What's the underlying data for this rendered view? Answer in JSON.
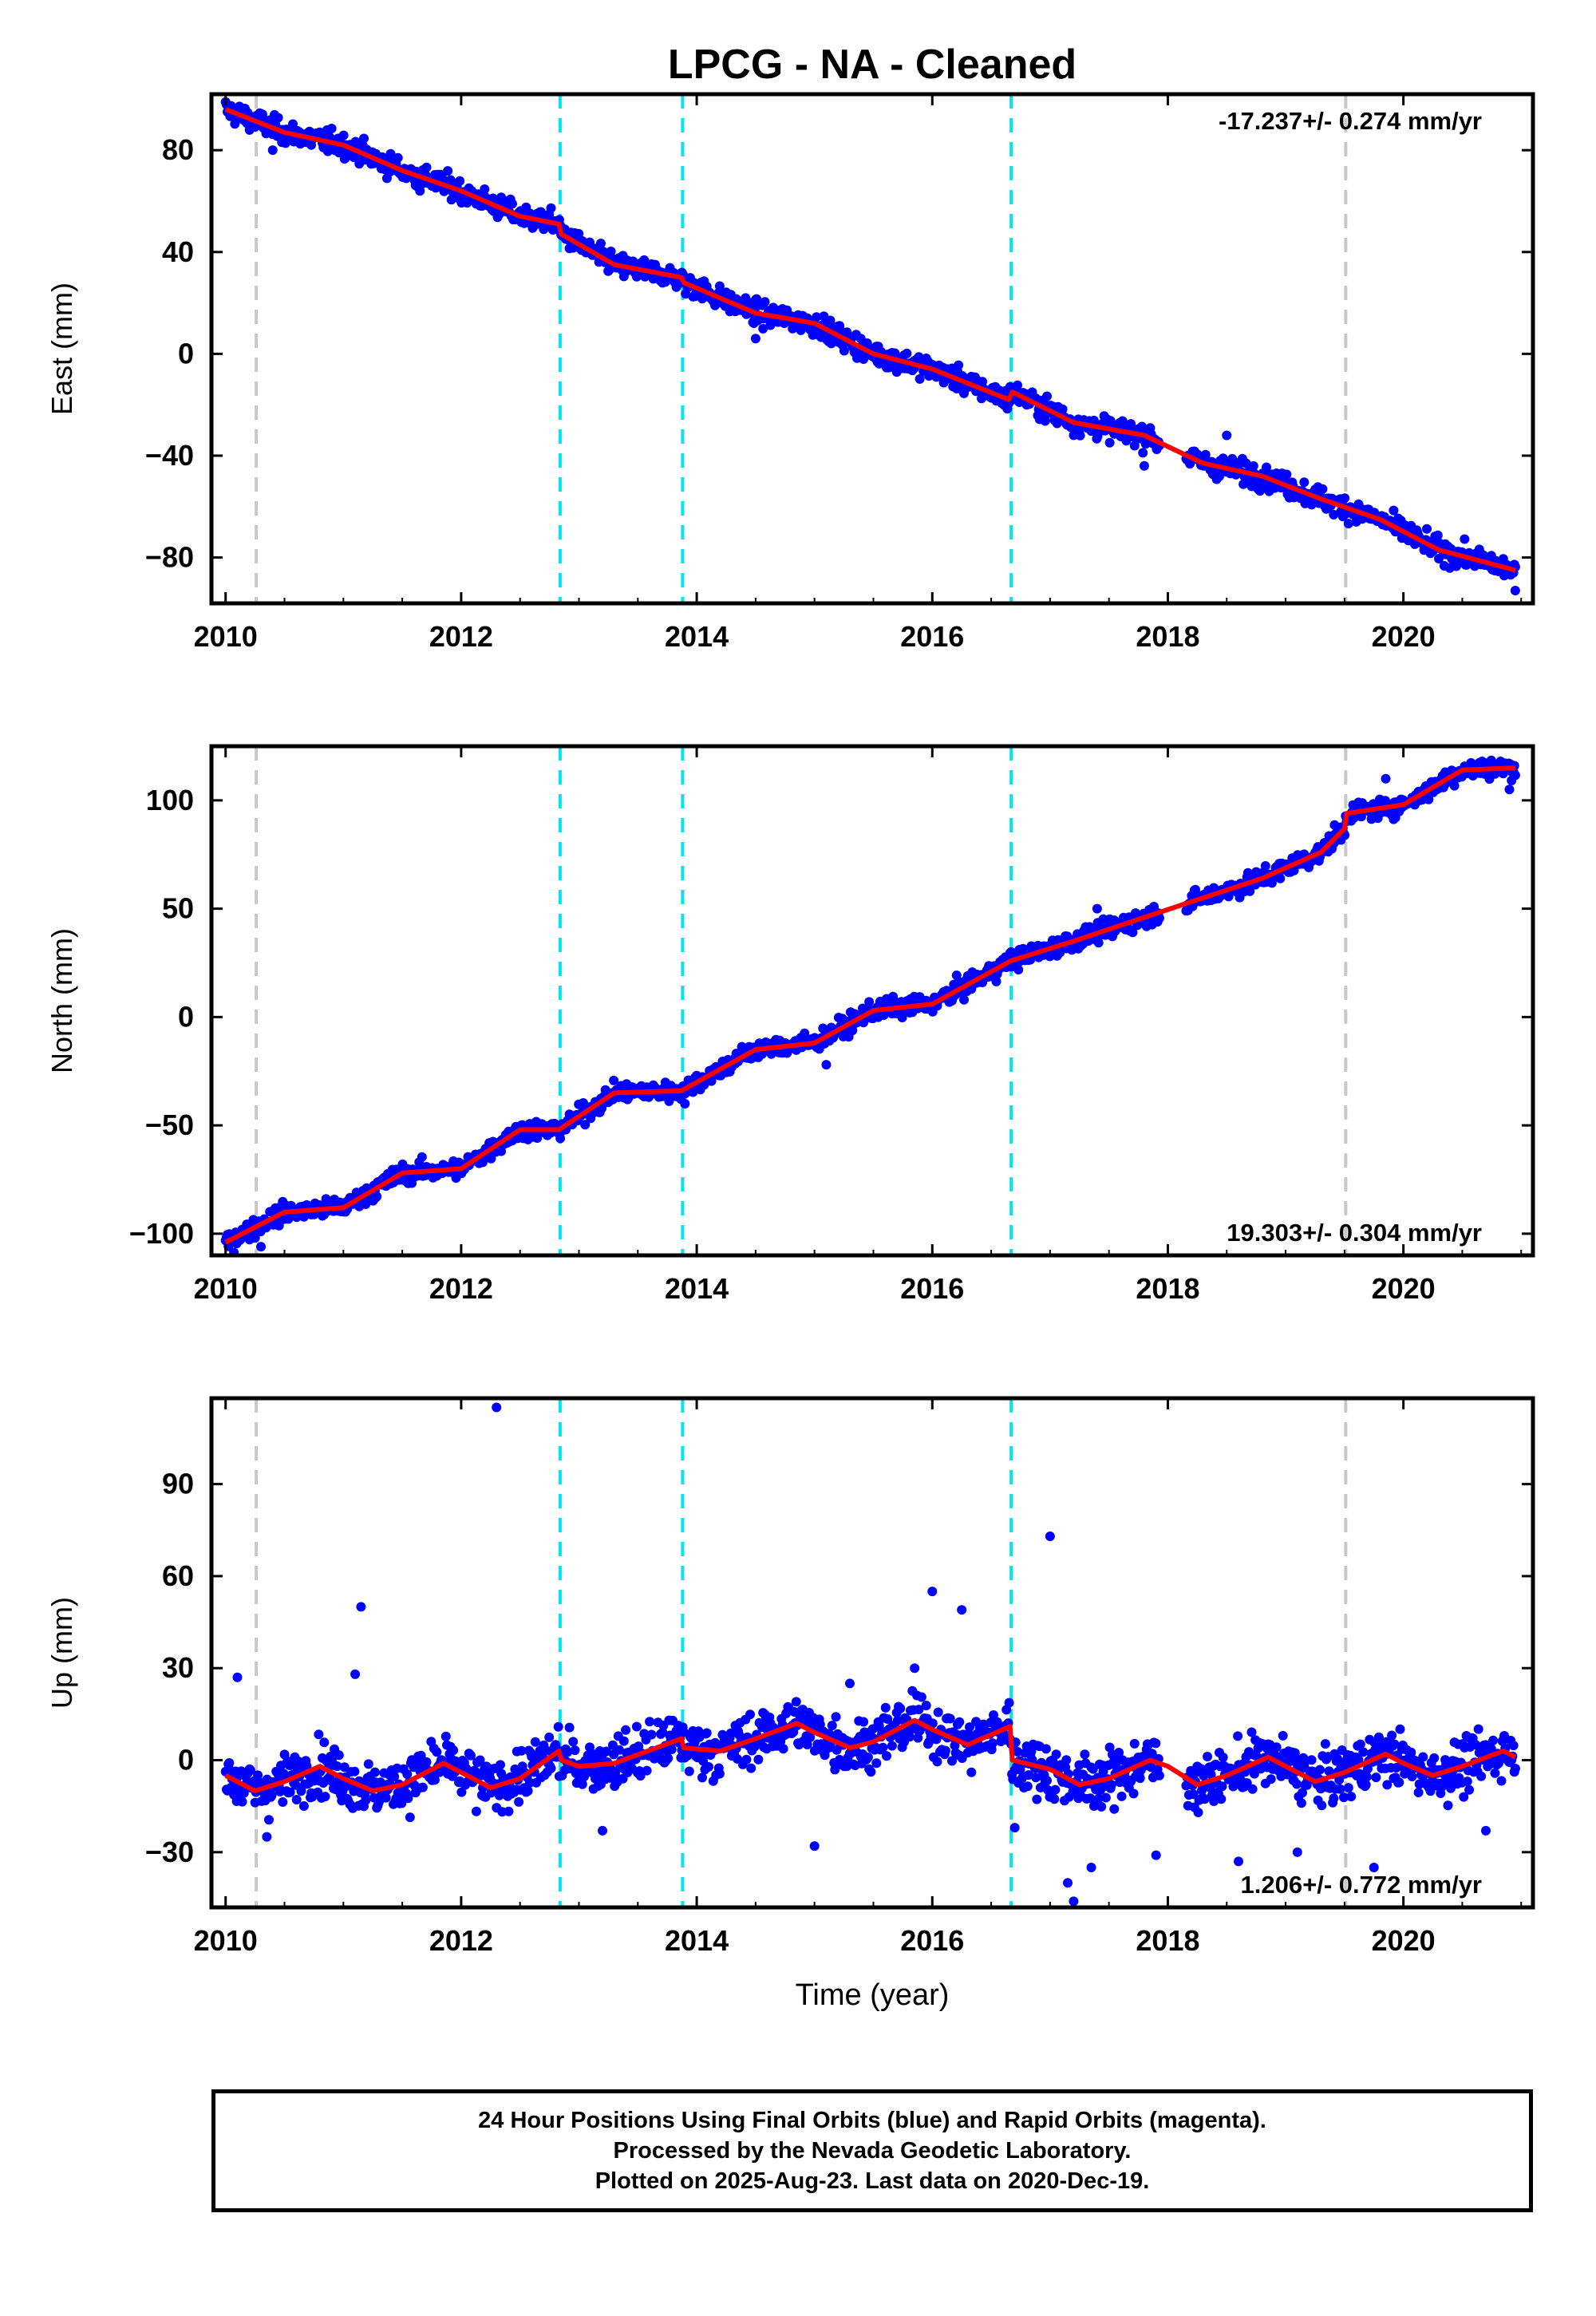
{
  "chart_data": {
    "type": "scatter",
    "title": "LPCG  - NA - Cleaned",
    "colors": {
      "data": "#0000ff",
      "fit": "#ff0000",
      "offset_equipment": "#00e5ee",
      "offset_other": "#c8c8c8"
    },
    "equipment_offsets": [
      2012.84,
      2013.88,
      2016.67
    ],
    "other_offsets": [
      2010.26,
      2019.51
    ],
    "xlim": [
      2009.88,
      2021.1
    ],
    "xticks": [
      2010,
      2012,
      2014,
      2016,
      2018,
      2020
    ],
    "xlabel": "Time (year)",
    "last_data": 2020.97,
    "panels": [
      {
        "id": "east",
        "ylabel": "East (mm)",
        "ylim": [
          -98,
          102
        ],
        "yticks": [
          80,
          40,
          0,
          -40,
          -80
        ],
        "rate": "-17.237+/- 0.274 mm/yr",
        "rate_position": "top-right",
        "show_xlabel": false,
        "series": [
          {
            "name": "",
            "x": [
              2010.0,
              2010.5,
              2011.0,
              2011.5,
              2012.0,
              2012.5,
              2012.83,
              2012.85,
              2013.3,
              2013.87,
              2013.89,
              2014.5,
              2015.0,
              2015.5,
              2016.0,
              2016.65,
              2016.68,
              2017.2,
              2017.8,
              2018.3,
              2018.8,
              2019.3,
              2019.8,
              2020.3,
              2020.95
            ],
            "y": [
              96,
              87,
              82,
              72,
              64,
              54,
              51,
              47,
              35,
              30,
              28,
              16,
              12,
              0,
              -6,
              -18,
              -15,
              -27,
              -32,
              -43,
              -48,
              -57,
              -65,
              -77,
              -85
            ]
          }
        ],
        "outliers": [
          [
            2010.4,
            80
          ],
          [
            2011.65,
            64
          ],
          [
            2013.6,
            34
          ],
          [
            2014.5,
            6
          ],
          [
            2017.8,
            -44
          ],
          [
            2018.5,
            -32
          ],
          [
            2019.6,
            -66
          ],
          [
            2020.95,
            -93
          ]
        ]
      },
      {
        "id": "north",
        "ylabel": "North (mm)",
        "ylim": [
          -110,
          125
        ],
        "yticks": [
          100,
          50,
          0,
          -50,
          -100
        ],
        "rate": "19.303+/- 0.304 mm/yr",
        "rate_position": "bottom-right",
        "show_xlabel": false,
        "series": [
          {
            "name": "",
            "x": [
              2010.0,
              2010.5,
              2011.0,
              2011.5,
              2012.0,
              2012.5,
              2012.83,
              2013.3,
              2013.87,
              2014.5,
              2015.0,
              2015.5,
              2016.0,
              2016.67,
              2017.2,
              2017.8,
              2018.3,
              2018.8,
              2019.3,
              2019.5,
              2019.52,
              2020.0,
              2020.5,
              2020.95
            ],
            "y": [
              -104,
              -90,
              -88,
              -72,
              -70,
              -52,
              -52,
              -35,
              -34,
              -15,
              -12,
              3,
              6,
              26,
              35,
              46,
              55,
              64,
              76,
              87,
              94,
              98,
              114,
              115
            ]
          }
        ],
        "outliers": [
          [
            2010.3,
            -106
          ],
          [
            2013.9,
            -40
          ],
          [
            2015.1,
            -22
          ],
          [
            2017.4,
            50
          ],
          [
            2019.85,
            110
          ],
          [
            2020.9,
            105
          ]
        ]
      },
      {
        "id": "up",
        "ylabel": "Up (mm)",
        "ylim": [
          -48,
          118
        ],
        "yticks": [
          90,
          60,
          30,
          0,
          -30
        ],
        "rate": "1.206+/- 0.772 mm/yr",
        "rate_position": "bottom-right",
        "show_xlabel": true,
        "series": [
          {
            "name": "",
            "x": [
              2010.0,
              2010.25,
              2010.5,
              2010.8,
              2011.0,
              2011.25,
              2011.5,
              2011.85,
              2012.0,
              2012.25,
              2012.5,
              2012.83,
              2012.85,
              2013.0,
              2013.3,
              2013.87,
              2013.89,
              2014.2,
              2014.5,
              2014.85,
              2015.0,
              2015.3,
              2015.5,
              2015.85,
              2016.0,
              2016.3,
              2016.66,
              2016.68,
              2017.0,
              2017.25,
              2017.5,
              2017.85,
              2018.0,
              2018.25,
              2018.5,
              2018.85,
              2019.0,
              2019.25,
              2019.5,
              2019.85,
              2020.0,
              2020.25,
              2020.5,
              2020.85,
              2020.95
            ],
            "y": [
              -5,
              -10,
              -7,
              -2,
              -6,
              -10,
              -8,
              -1,
              -4,
              -9,
              -6,
              3,
              0,
              -2,
              -1,
              7,
              4,
              3,
              7,
              12,
              9,
              4,
              6,
              13,
              10,
              5,
              11,
              0,
              -3,
              -8,
              -6,
              0,
              -2,
              -8,
              -5,
              1,
              -2,
              -7,
              -4,
              2,
              -1,
              -5,
              -2,
              3,
              1
            ]
          }
        ],
        "outliers": [
          [
            2010.1,
            27
          ],
          [
            2011.1,
            28
          ],
          [
            2011.15,
            50
          ],
          [
            2012.3,
            115
          ],
          [
            2016.0,
            55
          ],
          [
            2016.25,
            49
          ],
          [
            2017.0,
            73
          ],
          [
            2017.15,
            -40
          ],
          [
            2017.2,
            -46
          ],
          [
            2016.7,
            -22
          ],
          [
            2017.35,
            -35
          ],
          [
            2017.9,
            -31
          ],
          [
            2018.6,
            -33
          ],
          [
            2019.1,
            -30
          ],
          [
            2019.75,
            -35
          ],
          [
            2015.0,
            -28
          ],
          [
            2015.3,
            25
          ],
          [
            2015.85,
            30
          ],
          [
            2010.35,
            -25
          ],
          [
            2013.2,
            -23
          ],
          [
            2020.7,
            -23
          ]
        ]
      }
    ]
  },
  "footer": {
    "line1": "24 Hour Positions Using Final Orbits (blue) and Rapid Orbits (magenta).",
    "line2": "Processed by the Nevada Geodetic Laboratory.",
    "line3": "Plotted on 2025-Aug-23. Last data on 2020-Dec-19."
  }
}
